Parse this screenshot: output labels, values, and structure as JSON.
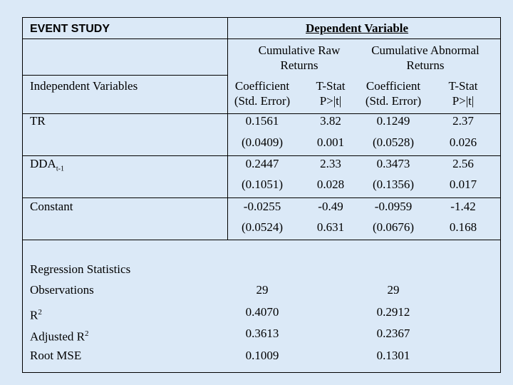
{
  "header": {
    "title": "EVENT STUDY",
    "dependent_variable": "Dependent Variable",
    "group_raw": [
      "Cumulative Raw",
      "Returns"
    ],
    "group_abnormal": [
      "Cumulative Abnormal",
      "Returns"
    ],
    "independent_variables": "Independent Variables",
    "col_coef": [
      "Coefficient",
      "(Std. Error)"
    ],
    "col_tstat": [
      "T-Stat",
      "P>|t|"
    ]
  },
  "rows": [
    {
      "label": "TR",
      "label_sub": "",
      "raw_coef": "0.1561",
      "raw_t": "3.82",
      "abn_coef": "0.1249",
      "abn_t": "2.37",
      "raw_se": "(0.0409)",
      "raw_p": "0.001",
      "abn_se": "(0.0528)",
      "abn_p": "0.026"
    },
    {
      "label": "DDA",
      "label_sub": "t-1",
      "raw_coef": "0.2447",
      "raw_t": "2.33",
      "abn_coef": "0.3473",
      "abn_t": "2.56",
      "raw_se": "(0.1051)",
      "raw_p": "0.028",
      "abn_se": "(0.1356)",
      "abn_p": "0.017"
    },
    {
      "label": "Constant",
      "label_sub": "",
      "raw_coef": "-0.0255",
      "raw_t": "-0.49",
      "abn_coef": "-0.0959",
      "abn_t": "-1.42",
      "raw_se": "(0.0524)",
      "raw_p": "0.631",
      "abn_se": "(0.0676)",
      "abn_p": "0.168"
    }
  ],
  "regression": {
    "heading": "Regression Statistics",
    "stats": [
      {
        "label": "Observations",
        "sup": "",
        "raw": "29",
        "abn": "29"
      },
      {
        "label": "R",
        "sup": "2",
        "raw": "0.4070",
        "abn": "0.2912"
      },
      {
        "label": "Adjusted R",
        "sup": "2",
        "raw": "0.3613",
        "abn": "0.2367"
      },
      {
        "label": "Root MSE",
        "sup": "",
        "raw": "0.1009",
        "abn": "0.1301"
      }
    ]
  }
}
